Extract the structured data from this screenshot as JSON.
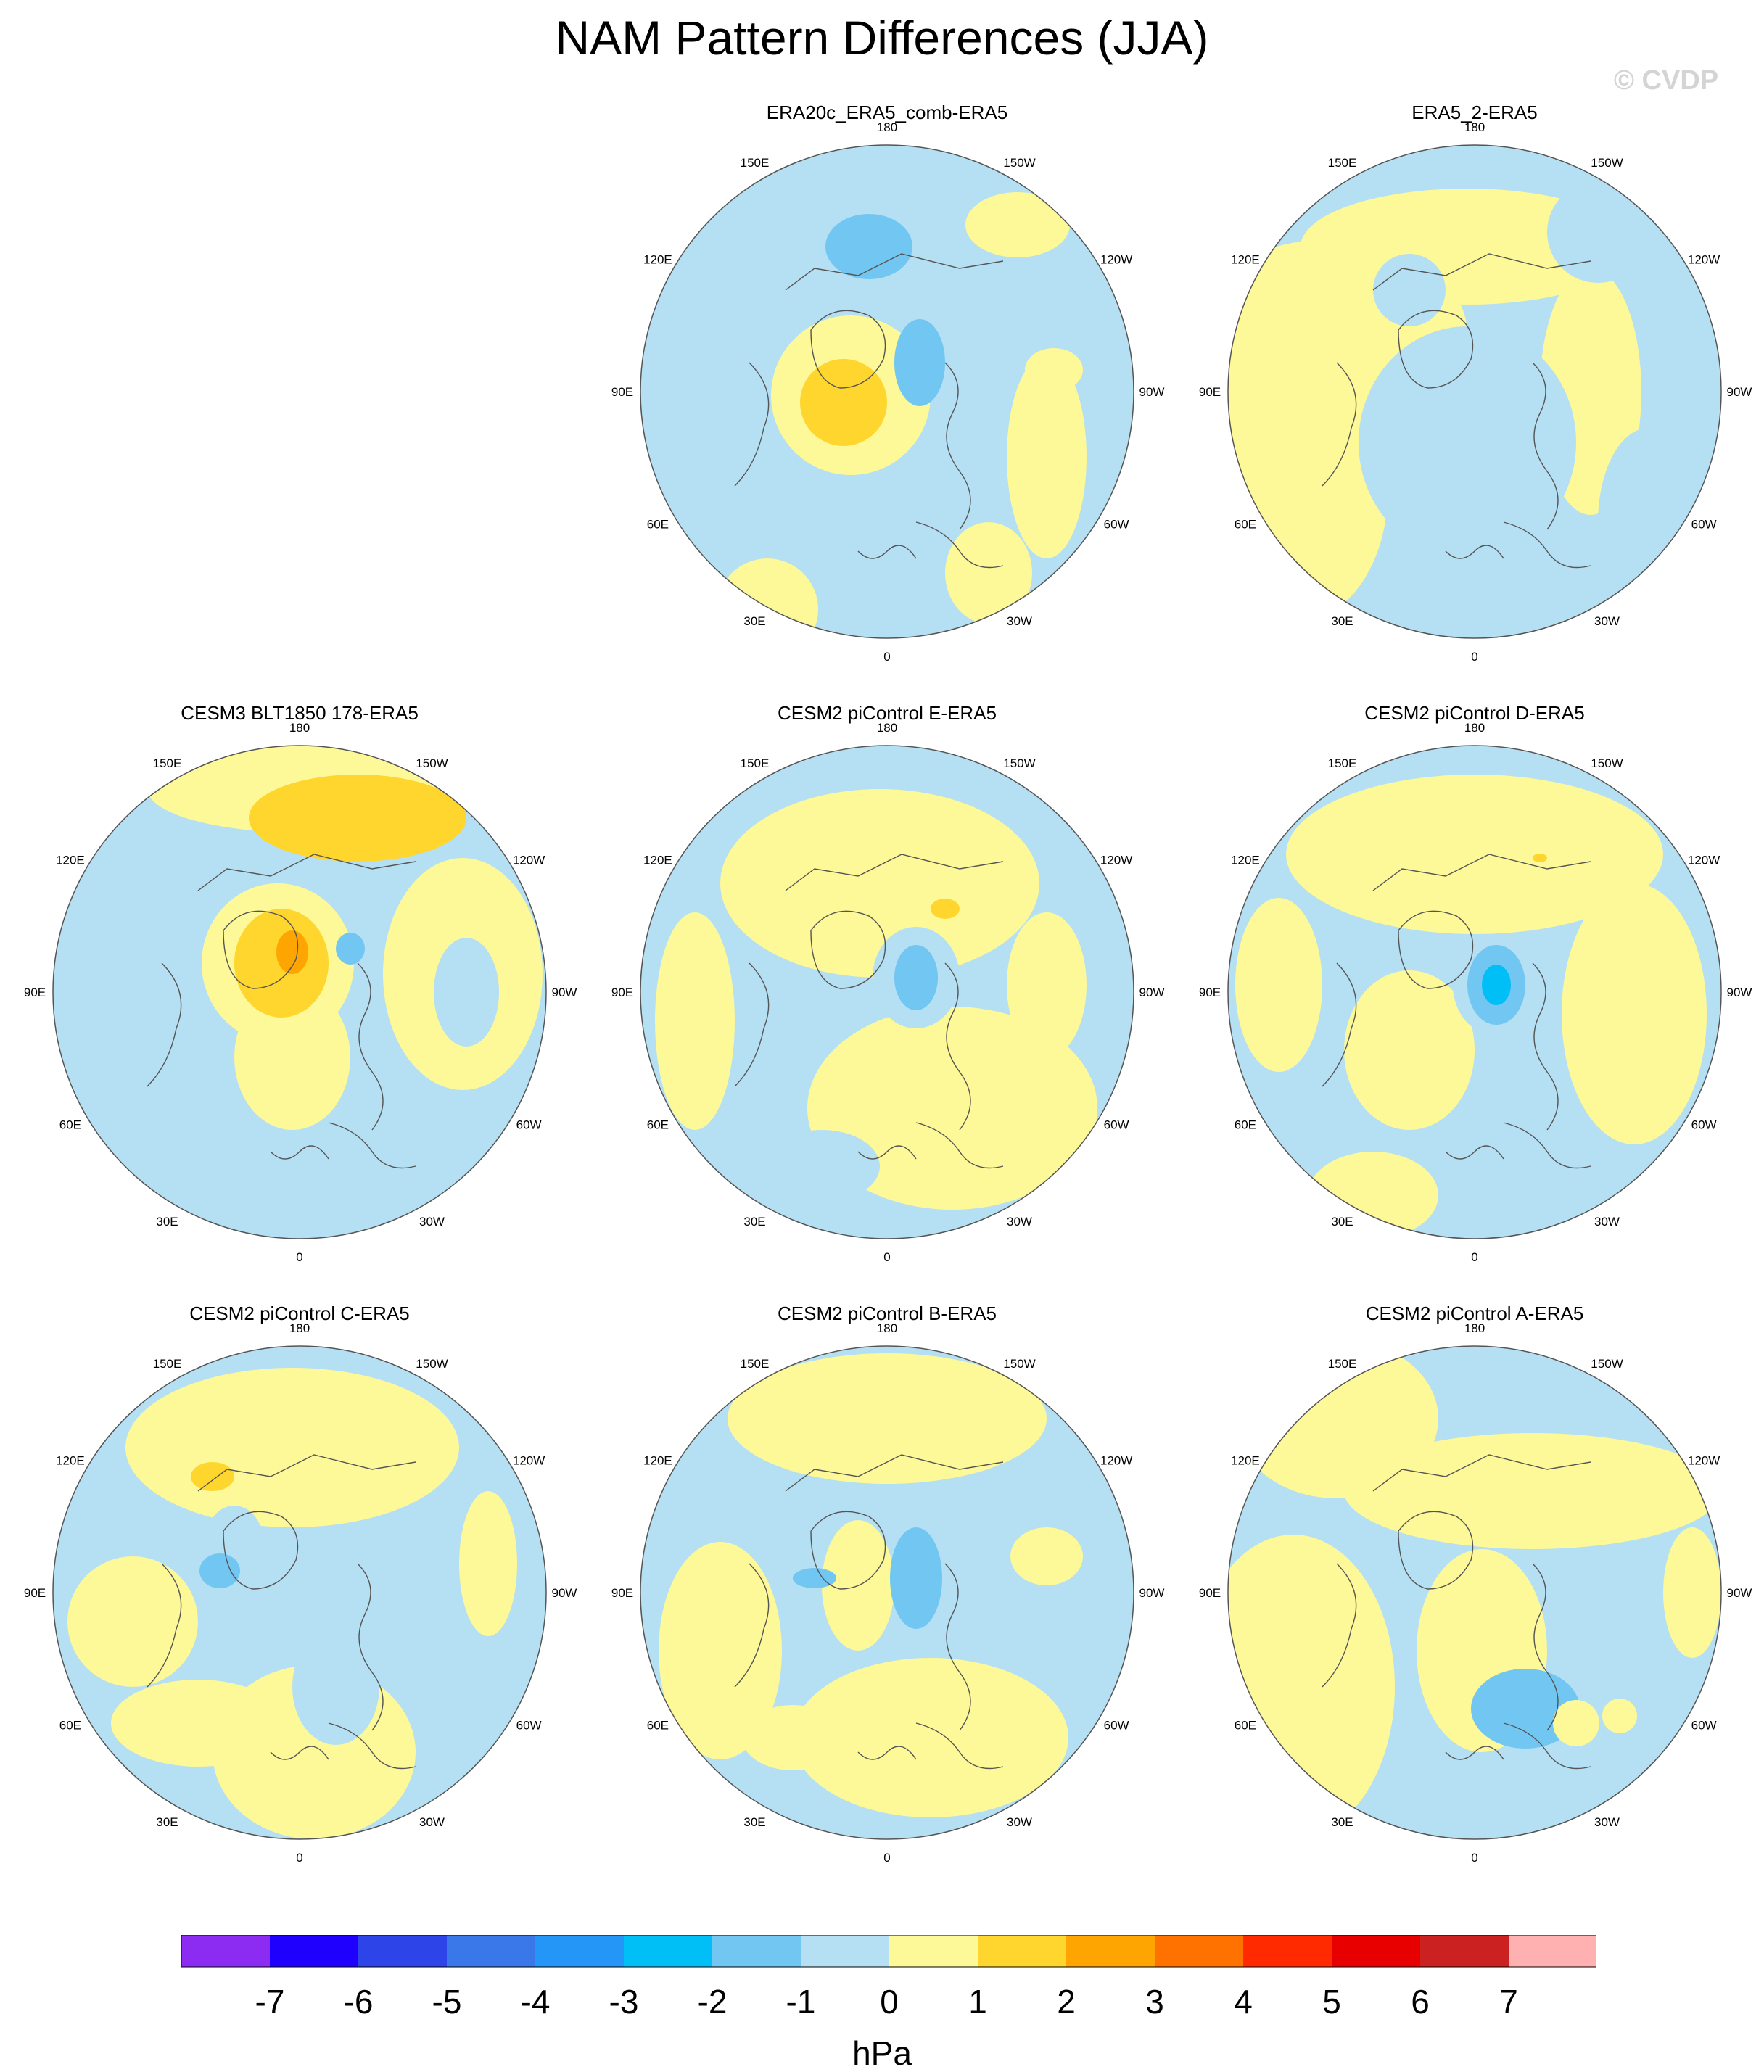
{
  "title": "NAM Pattern Differences (JJA)",
  "watermark": "© CVDP",
  "colors": {
    "levels": [
      "#8c2cf3",
      "#1f00ff",
      "#2d45e8",
      "#3a78e9",
      "#2496f8",
      "#00bff6",
      "#72c6f2",
      "#b5dff3",
      "#fdf898",
      "#fed62d",
      "#fea502",
      "#ff7200",
      "#ff2a00",
      "#e80000",
      "#cc2121",
      "#ffb0b0"
    ],
    "land_outline": "#555555",
    "circle_outline": "#555555"
  },
  "longitude_labels": [
    "180",
    "150E",
    "120E",
    "90E",
    "60E",
    "30E",
    "0",
    "30W",
    "60W",
    "90W",
    "120W",
    "150W"
  ],
  "panels": [
    {
      "title": "ERA20c_ERA5_comb-ERA5"
    },
    {
      "title": "ERA5_2-ERA5"
    },
    {
      "title": "CESM3 BLT1850 178-ERA5"
    },
    {
      "title": "CESM2 piControl E-ERA5"
    },
    {
      "title": "CESM2 piControl D-ERA5"
    },
    {
      "title": "CESM2 piControl C-ERA5"
    },
    {
      "title": "CESM2 piControl B-ERA5"
    },
    {
      "title": "CESM2 piControl A-ERA5"
    }
  ],
  "colorbar": {
    "tick_labels": [
      "-7",
      "-6",
      "-5",
      "-4",
      "-3",
      "-2",
      "-1",
      "0",
      "1",
      "2",
      "3",
      "4",
      "5",
      "6",
      "7"
    ],
    "unit": "hPa"
  }
}
